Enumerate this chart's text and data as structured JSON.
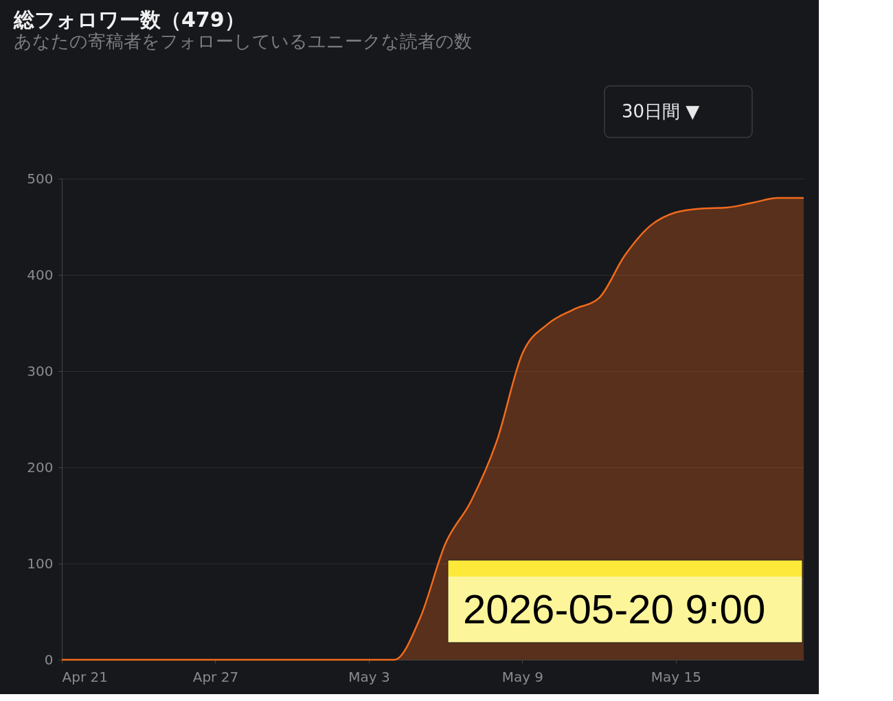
{
  "chart_data": {
    "type": "area",
    "title": "総フォロワー数（479）",
    "subtitle": "あなたの寄稿者をフォローしているユニークな読者の数",
    "x": [
      "2026-04-21",
      "2026-04-22",
      "2026-04-23",
      "2026-04-24",
      "2026-04-25",
      "2026-04-26",
      "2026-04-27",
      "2026-04-28",
      "2026-04-29",
      "2026-04-30",
      "2026-05-01",
      "2026-05-02",
      "2026-05-03",
      "2026-05-04",
      "2026-05-05",
      "2026-05-06",
      "2026-05-07",
      "2026-05-08",
      "2026-05-09",
      "2026-05-10",
      "2026-05-11",
      "2026-05-12",
      "2026-05-13",
      "2026-05-14",
      "2026-05-15",
      "2026-05-16",
      "2026-05-17",
      "2026-05-18",
      "2026-05-19",
      "2026-05-20"
    ],
    "series": [
      {
        "color": "#f26b1d",
        "values": [
          0,
          0,
          0,
          0,
          0,
          0,
          0,
          0,
          0,
          0,
          0,
          0,
          0,
          0,
          43,
          121,
          165,
          227,
          318,
          349,
          364,
          376,
          420,
          451,
          465,
          469,
          470,
          475,
          480,
          480
        ]
      }
    ],
    "xlim": [
      "2026-04-21",
      "2026-05-20"
    ],
    "xticks": [
      {
        "value": "2026-04-21",
        "label": "Apr 21"
      },
      {
        "value": "2026-04-27",
        "label": "Apr 27"
      },
      {
        "value": "2026-05-03",
        "label": "May 3"
      },
      {
        "value": "2026-05-09",
        "label": "May 9"
      },
      {
        "value": "2026-05-15",
        "label": "May 15"
      }
    ],
    "ylim": [
      0,
      500
    ],
    "yticks": [
      0,
      100,
      200,
      300,
      400,
      500
    ],
    "grid": "y",
    "annotations": [
      "30日間 ▼",
      "2026-05-20 9:00"
    ]
  }
}
